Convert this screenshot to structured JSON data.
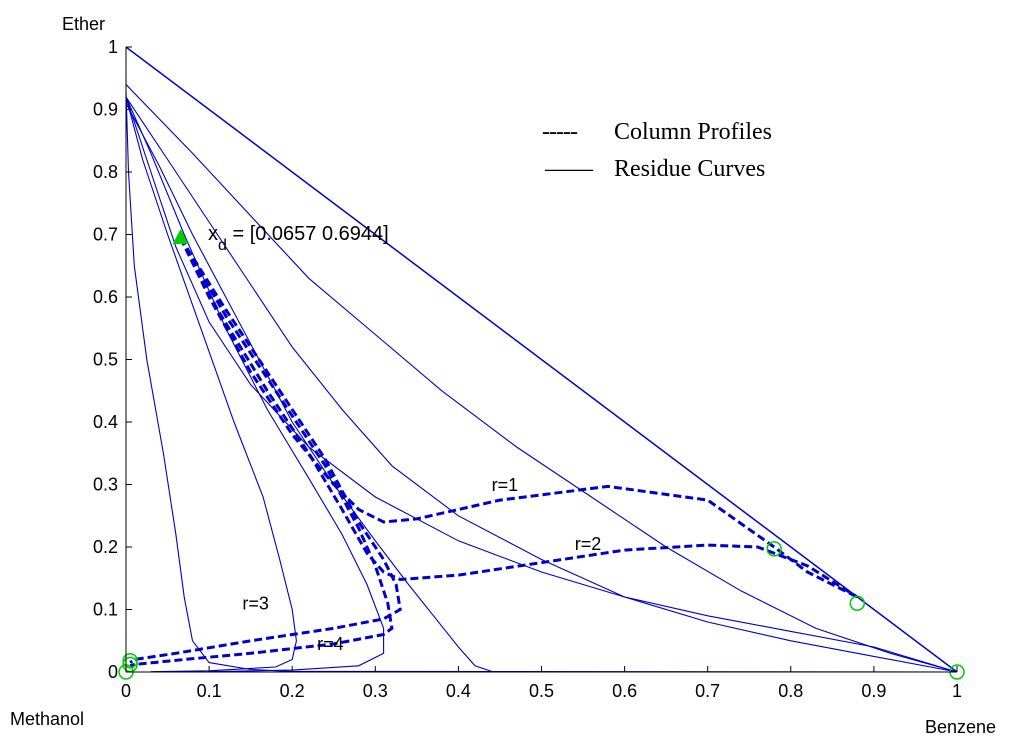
{
  "chart_data": {
    "type": "line",
    "title": "",
    "xlabel": "",
    "ylabel": "",
    "xlim": [
      0,
      1
    ],
    "ylim": [
      0,
      1
    ],
    "corner_labels": {
      "top": "Ether",
      "bottom_left": "Methanol",
      "bottom_right": "Benzene"
    },
    "x_ticks": [
      "0",
      "0.1",
      "0.2",
      "0.3",
      "0.4",
      "0.5",
      "0.6",
      "0.7",
      "0.8",
      "0.9",
      "1"
    ],
    "y_ticks": [
      "0",
      "0.1",
      "0.2",
      "0.3",
      "0.4",
      "0.5",
      "0.6",
      "0.7",
      "0.8",
      "0.9",
      "1"
    ],
    "legend": {
      "placement": "top-right",
      "entries": [
        {
          "sample": "-----",
          "label": "Column Profiles",
          "style": "dashed"
        },
        {
          "sample": "——",
          "label": "Residue Curves",
          "style": "solid"
        }
      ]
    },
    "annotation": {
      "main": "x",
      "subscript": "d",
      "rest": " = [0.0657 0.6944]",
      "point": [
        0.0657,
        0.6944
      ]
    },
    "colors": {
      "curves": "#0000cc",
      "marker": "#00cc00",
      "text": "#000000"
    },
    "boundary": [
      [
        0,
        1
      ],
      [
        1,
        0
      ]
    ],
    "residue_curves": [
      [
        [
          0,
          0.93
        ],
        [
          0.003,
          0.8
        ],
        [
          0.01,
          0.65
        ],
        [
          0.025,
          0.5
        ],
        [
          0.045,
          0.35
        ],
        [
          0.06,
          0.22
        ],
        [
          0.07,
          0.12
        ],
        [
          0.08,
          0.05
        ],
        [
          0.1,
          0.015
        ],
        [
          0.15,
          0.004
        ],
        [
          0.2,
          0.001
        ],
        [
          1,
          0
        ]
      ],
      [
        [
          0,
          0.92
        ],
        [
          0.02,
          0.82
        ],
        [
          0.05,
          0.7
        ],
        [
          0.09,
          0.55
        ],
        [
          0.13,
          0.4
        ],
        [
          0.165,
          0.28
        ],
        [
          0.185,
          0.18
        ],
        [
          0.2,
          0.1
        ],
        [
          0.205,
          0.05
        ],
        [
          0.2,
          0.02
        ],
        [
          0.18,
          0.008
        ],
        [
          0.1,
          0.002
        ],
        [
          0.03,
          0.0005
        ]
      ],
      [
        [
          0,
          0.92
        ],
        [
          0.03,
          0.83
        ],
        [
          0.07,
          0.7
        ],
        [
          0.12,
          0.55
        ],
        [
          0.17,
          0.42
        ],
        [
          0.22,
          0.31
        ],
        [
          0.26,
          0.22
        ],
        [
          0.29,
          0.14
        ],
        [
          0.31,
          0.07
        ],
        [
          0.31,
          0.03
        ],
        [
          0.28,
          0.01
        ],
        [
          0.2,
          0.003
        ],
        [
          0.1,
          0.0005
        ]
      ],
      [
        [
          0,
          0.91
        ],
        [
          0.04,
          0.81
        ],
        [
          0.08,
          0.7
        ],
        [
          0.12,
          0.6
        ],
        [
          0.16,
          0.5
        ],
        [
          0.2,
          0.4
        ],
        [
          0.25,
          0.3
        ],
        [
          0.3,
          0.21
        ],
        [
          0.34,
          0.14
        ],
        [
          0.37,
          0.09
        ],
        [
          0.4,
          0.04
        ],
        [
          0.42,
          0.01
        ],
        [
          0.44,
          0.001
        ]
      ],
      [
        [
          0,
          0.92
        ],
        [
          0.05,
          0.82
        ],
        [
          0.1,
          0.72
        ],
        [
          0.15,
          0.62
        ],
        [
          0.2,
          0.52
        ],
        [
          0.26,
          0.42
        ],
        [
          0.32,
          0.33
        ],
        [
          0.4,
          0.25
        ],
        [
          0.5,
          0.18
        ],
        [
          0.6,
          0.12
        ],
        [
          0.7,
          0.08
        ],
        [
          0.8,
          0.05
        ],
        [
          0.9,
          0.025
        ],
        [
          1,
          0
        ]
      ],
      [
        [
          0,
          0.94
        ],
        [
          0.08,
          0.83
        ],
        [
          0.15,
          0.73
        ],
        [
          0.22,
          0.63
        ],
        [
          0.3,
          0.54
        ],
        [
          0.38,
          0.45
        ],
        [
          0.47,
          0.36
        ],
        [
          0.56,
          0.28
        ],
        [
          0.65,
          0.2
        ],
        [
          0.74,
          0.13
        ],
        [
          0.83,
          0.07
        ],
        [
          0.92,
          0.03
        ],
        [
          1,
          0
        ]
      ],
      [
        [
          0,
          0.92
        ],
        [
          0.03,
          0.8
        ],
        [
          0.06,
          0.68
        ],
        [
          0.1,
          0.56
        ],
        [
          0.15,
          0.46
        ],
        [
          0.22,
          0.36
        ],
        [
          0.3,
          0.28
        ],
        [
          0.4,
          0.21
        ],
        [
          0.5,
          0.16
        ],
        [
          0.6,
          0.12
        ],
        [
          0.7,
          0.09
        ],
        [
          0.8,
          0.065
        ],
        [
          0.9,
          0.04
        ],
        [
          1,
          0
        ]
      ],
      [
        [
          0,
          0.0
        ],
        [
          0.4,
          0.0
        ],
        [
          1,
          0.0
        ]
      ]
    ],
    "series": [
      {
        "name": "r=1",
        "label_at": [
          0.44,
          0.29
        ],
        "points": [
          [
            0.0657,
            0.6944
          ],
          [
            0.1,
            0.6
          ],
          [
            0.15,
            0.48
          ],
          [
            0.2,
            0.38
          ],
          [
            0.25,
            0.3
          ],
          [
            0.28,
            0.26
          ],
          [
            0.31,
            0.24
          ],
          [
            0.35,
            0.245
          ],
          [
            0.45,
            0.275
          ],
          [
            0.58,
            0.297
          ],
          [
            0.7,
            0.275
          ],
          [
            0.78,
            0.2
          ],
          [
            0.82,
            0.16
          ],
          [
            0.88,
            0.12
          ]
        ]
      },
      {
        "name": "r=2",
        "label_at": [
          0.54,
          0.195
        ],
        "points": [
          [
            0.0657,
            0.6944
          ],
          [
            0.11,
            0.58
          ],
          [
            0.17,
            0.45
          ],
          [
            0.22,
            0.35
          ],
          [
            0.26,
            0.26
          ],
          [
            0.29,
            0.19
          ],
          [
            0.31,
            0.16
          ],
          [
            0.33,
            0.148
          ],
          [
            0.4,
            0.155
          ],
          [
            0.5,
            0.175
          ],
          [
            0.6,
            0.195
          ],
          [
            0.7,
            0.203
          ],
          [
            0.76,
            0.2
          ],
          [
            0.82,
            0.17
          ],
          [
            0.88,
            0.12
          ]
        ]
      },
      {
        "name": "r=3",
        "label_at": [
          0.14,
          0.1
        ],
        "points": [
          [
            0.0657,
            0.6944
          ],
          [
            0.12,
            0.58
          ],
          [
            0.18,
            0.46
          ],
          [
            0.24,
            0.34
          ],
          [
            0.28,
            0.24
          ],
          [
            0.31,
            0.18
          ],
          [
            0.325,
            0.14
          ],
          [
            0.33,
            0.1
          ],
          [
            0.31,
            0.085
          ],
          [
            0.25,
            0.07
          ],
          [
            0.15,
            0.05
          ],
          [
            0.06,
            0.03
          ],
          [
            0.01,
            0.02
          ],
          [
            0.005,
            0.015
          ]
        ]
      },
      {
        "name": "r=4",
        "label_at": [
          0.23,
          0.035
        ],
        "points": [
          [
            0.0657,
            0.6944
          ],
          [
            0.12,
            0.57
          ],
          [
            0.18,
            0.45
          ],
          [
            0.24,
            0.33
          ],
          [
            0.28,
            0.23
          ],
          [
            0.3,
            0.17
          ],
          [
            0.315,
            0.11
          ],
          [
            0.32,
            0.07
          ],
          [
            0.31,
            0.06
          ],
          [
            0.25,
            0.045
          ],
          [
            0.15,
            0.03
          ],
          [
            0.07,
            0.02
          ],
          [
            0.01,
            0.012
          ],
          [
            0.005,
            0.01
          ]
        ]
      }
    ],
    "circle_markers": [
      [
        0.0,
        0.0
      ],
      [
        0.005,
        0.018
      ],
      [
        0.005,
        0.012
      ],
      [
        0.78,
        0.197
      ],
      [
        0.88,
        0.11
      ],
      [
        1.0,
        0.0
      ]
    ]
  }
}
